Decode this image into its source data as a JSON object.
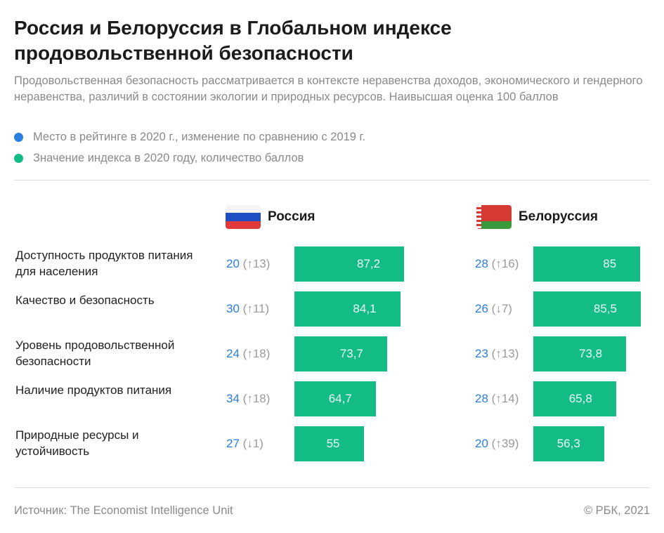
{
  "title": "Россия и Белоруссия в Глобальном индексе продовольственной безопасности",
  "subtitle": "Продовольственная безопасность рассматривается в контексте неравенства доходов, экономического и гендерного неравенства, различий в состоянии экологии и природных ресурсов. Наивысшая оценка 100 баллов",
  "legend": [
    {
      "label": "Место в рейтинге в 2020 г., изменение по сравнению с 2019 г.",
      "color": "#2a7de1"
    },
    {
      "label": "Значение индекса в 2020 году, количество баллов",
      "color": "#13bb85"
    }
  ],
  "chart_data": {
    "type": "bar",
    "categories": [
      "Доступность продуктов питания для населения",
      "Качество и безопасность",
      "Уровень продовольственной безопасности",
      "Наличие продуктов питания",
      "Природные ресурсы и устойчивость"
    ],
    "xlim": [
      0,
      100
    ],
    "series": [
      {
        "name": "Россия",
        "flag": "russia-flag-icon",
        "values": [
          87.2,
          84.1,
          73.7,
          64.7,
          55
        ],
        "labels": [
          "87,2",
          "84,1",
          "73,7",
          "64,7",
          "55"
        ],
        "ranks": [
          "20",
          "30",
          "24",
          "34",
          "27"
        ],
        "changes": [
          "(↑13)",
          "(↑11)",
          "(↑18)",
          "(↑18)",
          "(↓1)"
        ]
      },
      {
        "name": "Белоруссия",
        "flag": "belarus-flag-icon",
        "values": [
          85,
          85.5,
          73.8,
          65.8,
          56.3
        ],
        "labels": [
          "85",
          "85,5",
          "73,8",
          "65,8",
          "56,3"
        ],
        "ranks": [
          "28",
          "26",
          "23",
          "28",
          "20"
        ],
        "changes": [
          "(↑16)",
          "(↓7)",
          "(↑13)",
          "(↑14)",
          "(↑39)"
        ]
      }
    ]
  },
  "footer": {
    "source": "Источник: The Economist Intelligence Unit",
    "copyright": "© РБК, 2021"
  }
}
